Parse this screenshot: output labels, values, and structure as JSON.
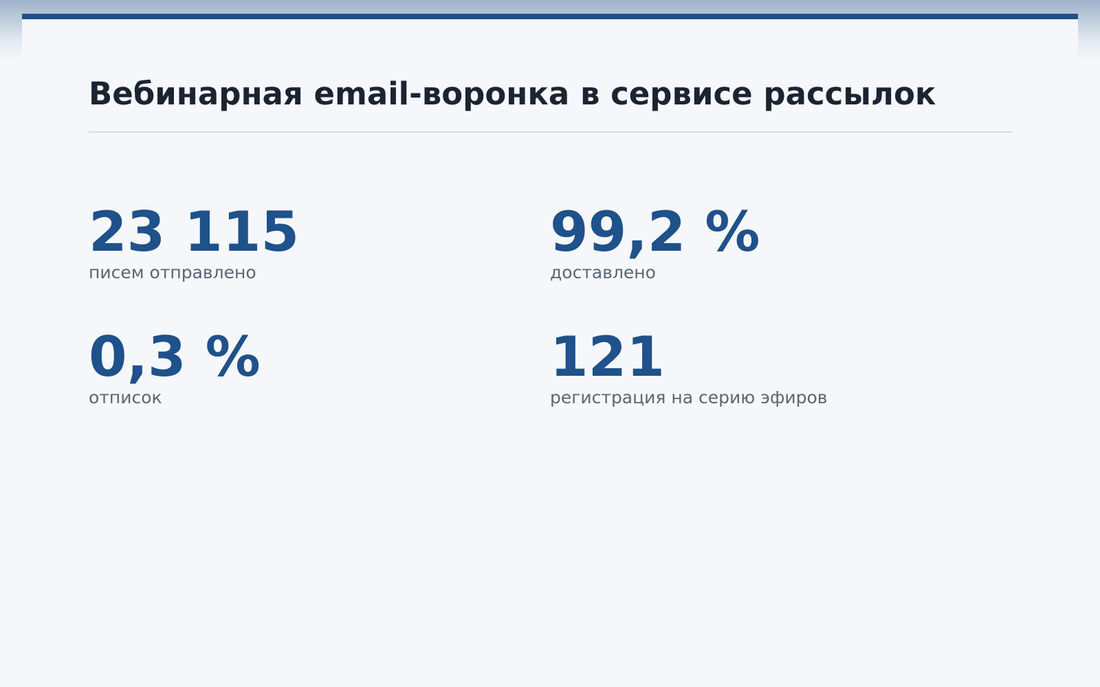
{
  "header": {
    "title": "Вебинарная email-воронка в сервисе рассылок"
  },
  "stats": [
    {
      "value": "23 115",
      "label": "писем отправлено"
    },
    {
      "value": "99,2 %",
      "label": "доставлено"
    },
    {
      "value": "0,3 %",
      "label": "отписок"
    },
    {
      "value": "121",
      "label": "регистрация на серию эфиров"
    }
  ]
}
